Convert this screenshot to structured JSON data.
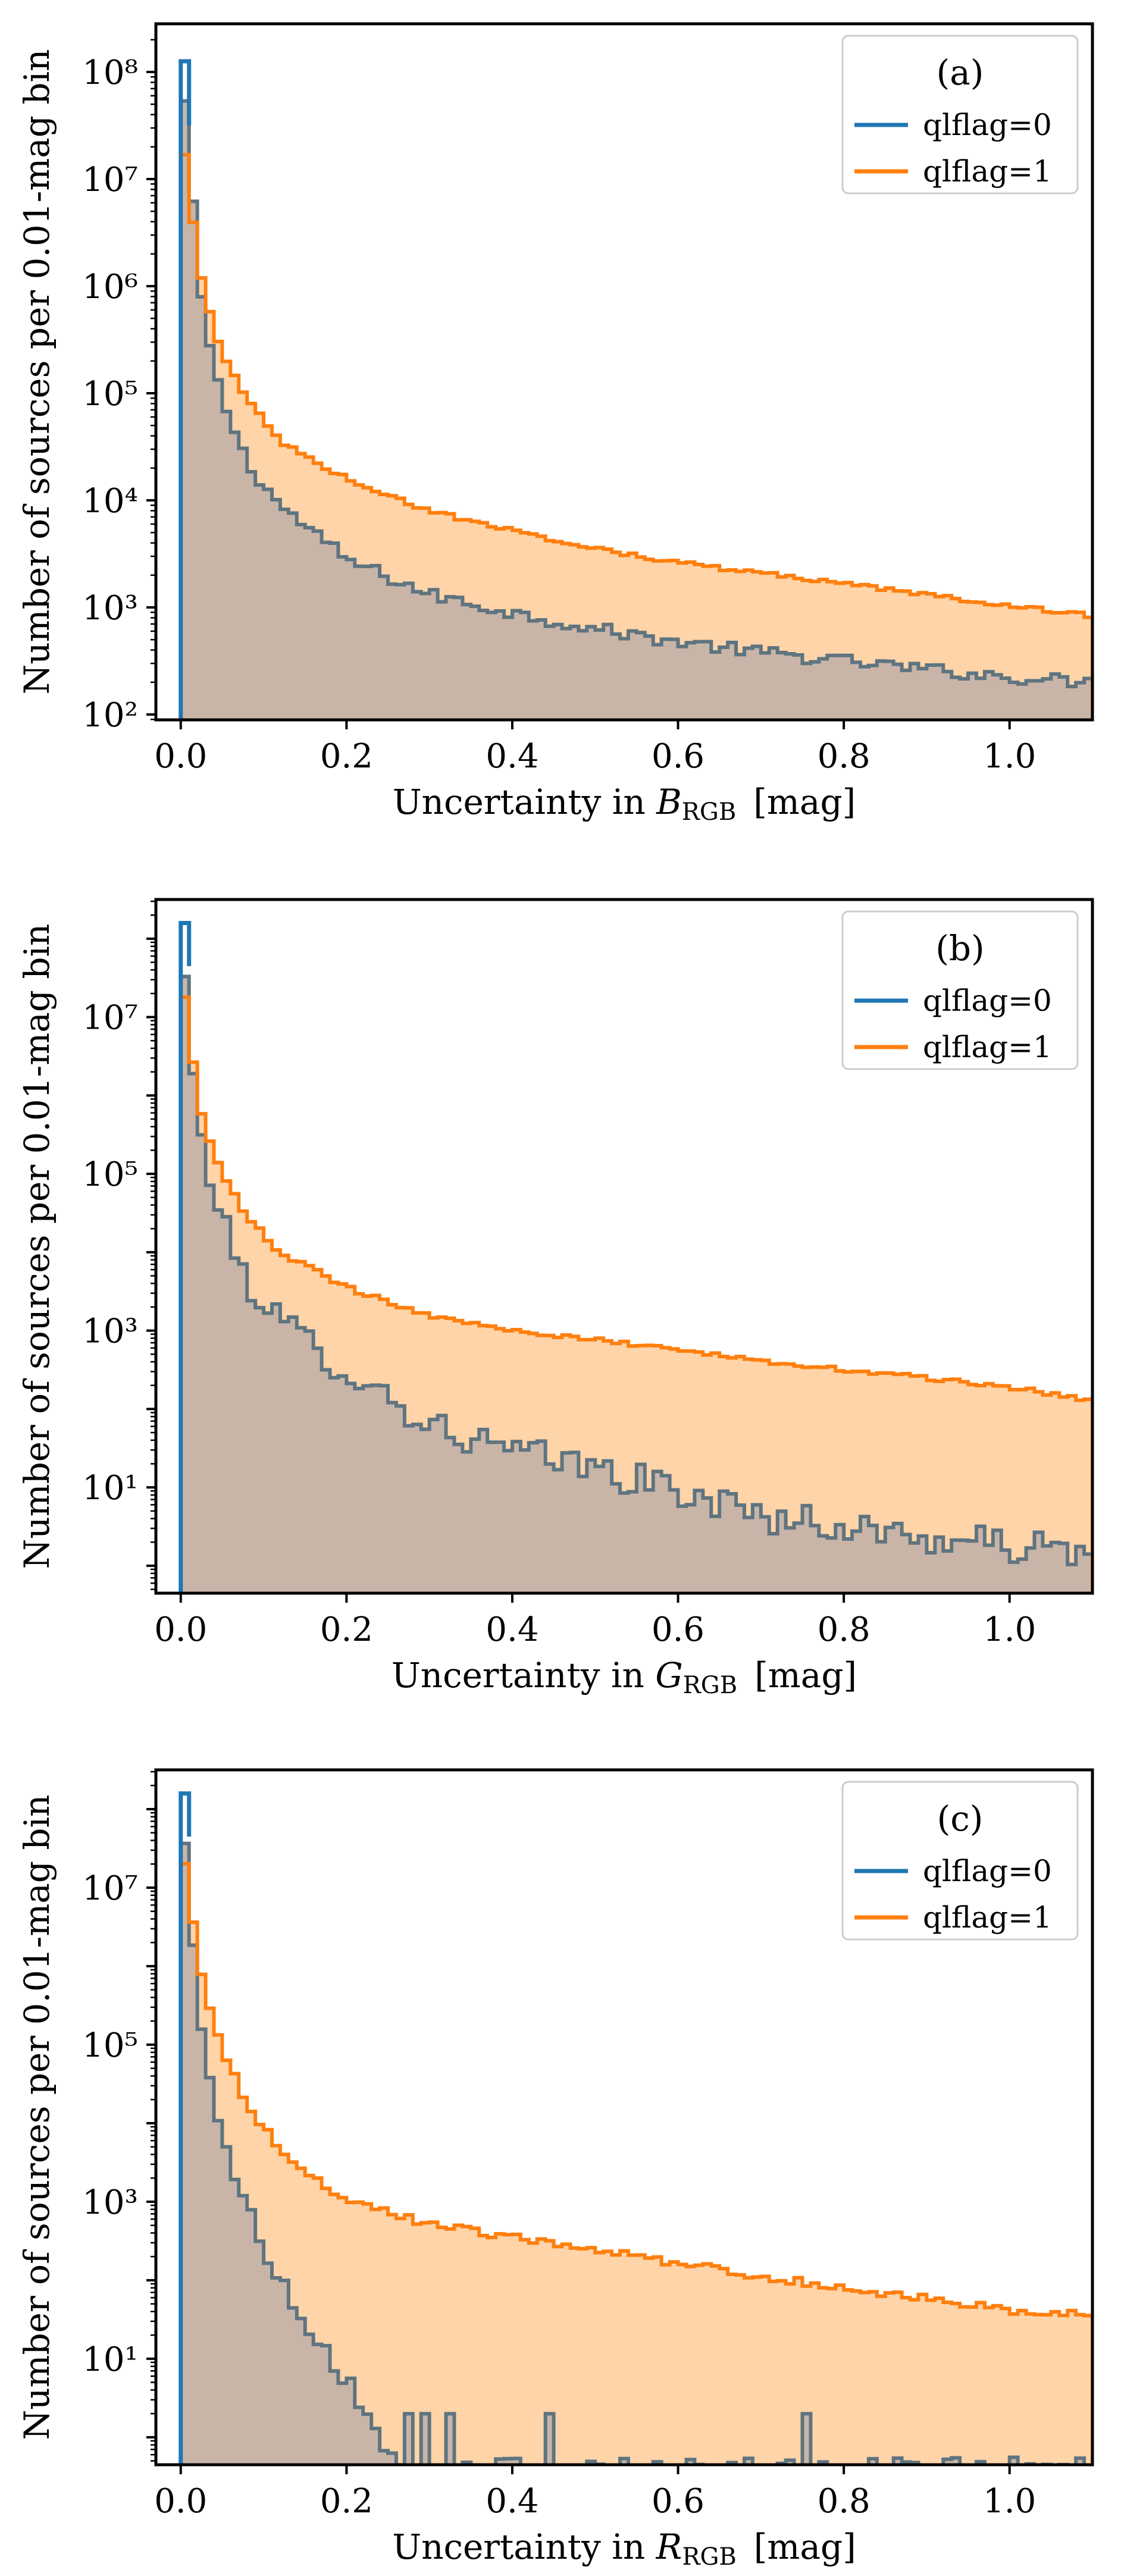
{
  "figure": {
    "description_colors": {
      "qlflag0_line": "#1f77b4",
      "qlflag0_fill": "#c9b5a8",
      "qlflag1_line": "#ff7f0e",
      "qlflag1_fill": "#ffd4a8",
      "outline_qlflag0_visible": "#5f7480"
    }
  },
  "chart_data": [
    {
      "type": "histogram",
      "panel_label": "(a)",
      "ylabel": "Number of sources per 0.01-mag bin",
      "xlabel_prefix": "Uncertainty in ",
      "xlabel_var": "B",
      "xlabel_sub": "RGB",
      "xlabel_unit": "[mag]",
      "xscale": "linear",
      "yscale": "log",
      "xlim": [
        -0.03,
        1.1
      ],
      "ylim_log10": [
        1.95,
        8.45
      ],
      "xticks": [
        0.0,
        0.2,
        0.4,
        0.6,
        0.8,
        1.0
      ],
      "xtick_labels": [
        "0.0",
        "0.2",
        "0.4",
        "0.6",
        "0.8",
        "1.0"
      ],
      "yticks_exp": [
        2,
        3,
        4,
        5,
        6,
        7,
        8
      ],
      "legend": [
        "qlflag=0",
        "qlflag=1"
      ],
      "legend_placement": "top-right",
      "bin_width": 0.01,
      "series": [
        {
          "name": "qlflag=0",
          "color": "#1f77b4",
          "fill": "#c9b5a8",
          "anchors_x": [
            0.0,
            0.01,
            0.02,
            0.03,
            0.05,
            0.08,
            0.12,
            0.2,
            0.3,
            0.4,
            0.5,
            0.6,
            0.7,
            0.8,
            0.9,
            1.0,
            1.1
          ],
          "anchors_log10": [
            8.1,
            7.35,
            6.2,
            5.6,
            4.95,
            4.35,
            3.95,
            3.45,
            3.12,
            2.95,
            2.8,
            2.68,
            2.58,
            2.5,
            2.42,
            2.35,
            2.3
          ],
          "noise": 0.06
        },
        {
          "name": "qlflag=1",
          "color": "#ff7f0e",
          "fill": "#ffd4a8",
          "anchors_x": [
            0.0,
            0.01,
            0.02,
            0.03,
            0.05,
            0.08,
            0.12,
            0.2,
            0.3,
            0.4,
            0.5,
            0.6,
            0.7,
            0.8,
            0.9,
            1.0,
            1.1
          ],
          "anchors_log10": [
            7.5,
            6.95,
            6.25,
            5.9,
            5.35,
            4.95,
            4.55,
            4.2,
            3.9,
            3.72,
            3.55,
            3.42,
            3.32,
            3.22,
            3.12,
            3.02,
            2.92
          ],
          "noise": 0.02
        }
      ]
    },
    {
      "type": "histogram",
      "panel_label": "(b)",
      "ylabel": "Number of sources per 0.01-mag bin",
      "xlabel_prefix": "Uncertainty in ",
      "xlabel_var": "G",
      "xlabel_sub": "RGB",
      "xlabel_unit": "[mag]",
      "xscale": "linear",
      "yscale": "log",
      "xlim": [
        -0.03,
        1.1
      ],
      "ylim_log10": [
        -0.35,
        8.5
      ],
      "xticks": [
        0.0,
        0.2,
        0.4,
        0.6,
        0.8,
        1.0
      ],
      "xtick_labels": [
        "0.0",
        "0.2",
        "0.4",
        "0.6",
        "0.8",
        "1.0"
      ],
      "yticks_exp": [
        1,
        3,
        5,
        7
      ],
      "legend": [
        "qlflag=0",
        "qlflag=1"
      ],
      "legend_placement": "top-right",
      "bin_width": 0.01,
      "series": [
        {
          "name": "qlflag=0",
          "color": "#1f77b4",
          "fill": "#c9b5a8",
          "anchors_x": [
            0.0,
            0.01,
            0.02,
            0.03,
            0.05,
            0.08,
            0.12,
            0.2,
            0.3,
            0.4,
            0.5,
            0.6,
            0.7,
            0.8,
            0.9,
            1.0,
            1.1
          ],
          "anchors_log10": [
            8.2,
            6.8,
            5.8,
            5.1,
            4.35,
            3.65,
            3.1,
            2.5,
            1.8,
            1.45,
            1.25,
            0.95,
            0.65,
            0.5,
            0.35,
            0.25,
            0.15
          ],
          "noise": 0.22
        },
        {
          "name": "qlflag=1",
          "color": "#ff7f0e",
          "fill": "#ffd4a8",
          "anchors_x": [
            0.0,
            0.01,
            0.02,
            0.03,
            0.05,
            0.08,
            0.12,
            0.2,
            0.3,
            0.4,
            0.5,
            0.6,
            0.7,
            0.8,
            0.9,
            1.0,
            1.1
          ],
          "anchors_log10": [
            7.65,
            6.85,
            6.0,
            5.55,
            5.0,
            4.45,
            4.0,
            3.55,
            3.2,
            3.0,
            2.88,
            2.75,
            2.62,
            2.5,
            2.4,
            2.28,
            2.1
          ],
          "noise": 0.03
        }
      ]
    },
    {
      "type": "histogram",
      "panel_label": "(c)",
      "ylabel": "Number of sources per 0.01-mag bin",
      "xlabel_prefix": "Uncertainty in ",
      "xlabel_var": "R",
      "xlabel_sub": "RGB",
      "xlabel_unit": "[mag]",
      "xscale": "linear",
      "yscale": "log",
      "xlim": [
        -0.03,
        1.1
      ],
      "ylim_log10": [
        -0.35,
        8.5
      ],
      "xticks": [
        0.0,
        0.2,
        0.4,
        0.6,
        0.8,
        1.0
      ],
      "xtick_labels": [
        "0.0",
        "0.2",
        "0.4",
        "0.6",
        "0.8",
        "1.0"
      ],
      "yticks_exp": [
        1,
        3,
        5,
        7
      ],
      "legend": [
        "qlflag=0",
        "qlflag=1"
      ],
      "legend_placement": "top-right",
      "bin_width": 0.01,
      "series": [
        {
          "name": "qlflag=0",
          "color": "#1f77b4",
          "fill": "#c9b5a8",
          "anchors_x": [
            0.0,
            0.01,
            0.02,
            0.03,
            0.05,
            0.08,
            0.12,
            0.16,
            0.2,
            0.23,
            0.26
          ],
          "anchors_log10": [
            8.2,
            6.9,
            5.6,
            4.85,
            3.8,
            2.9,
            2.0,
            1.35,
            0.75,
            0.3,
            -0.4
          ],
          "noise": 0.15,
          "spikes": [
            {
              "x": 0.27,
              "log10": 0.3
            },
            {
              "x": 0.29,
              "log10": 0.3
            },
            {
              "x": 0.32,
              "log10": 0.3
            },
            {
              "x": 0.44,
              "log10": 0.3
            },
            {
              "x": 0.75,
              "log10": 0.3
            }
          ]
        },
        {
          "name": "qlflag=1",
          "color": "#ff7f0e",
          "fill": "#ffd4a8",
          "anchors_x": [
            0.0,
            0.01,
            0.02,
            0.03,
            0.05,
            0.08,
            0.12,
            0.2,
            0.3,
            0.4,
            0.5,
            0.6,
            0.7,
            0.8,
            0.9,
            1.0,
            1.1
          ],
          "anchors_log10": [
            7.65,
            6.95,
            6.15,
            5.65,
            4.95,
            4.25,
            3.65,
            3.0,
            2.72,
            2.55,
            2.4,
            2.22,
            2.05,
            1.9,
            1.78,
            1.62,
            1.55
          ],
          "noise": 0.05
        }
      ]
    }
  ]
}
